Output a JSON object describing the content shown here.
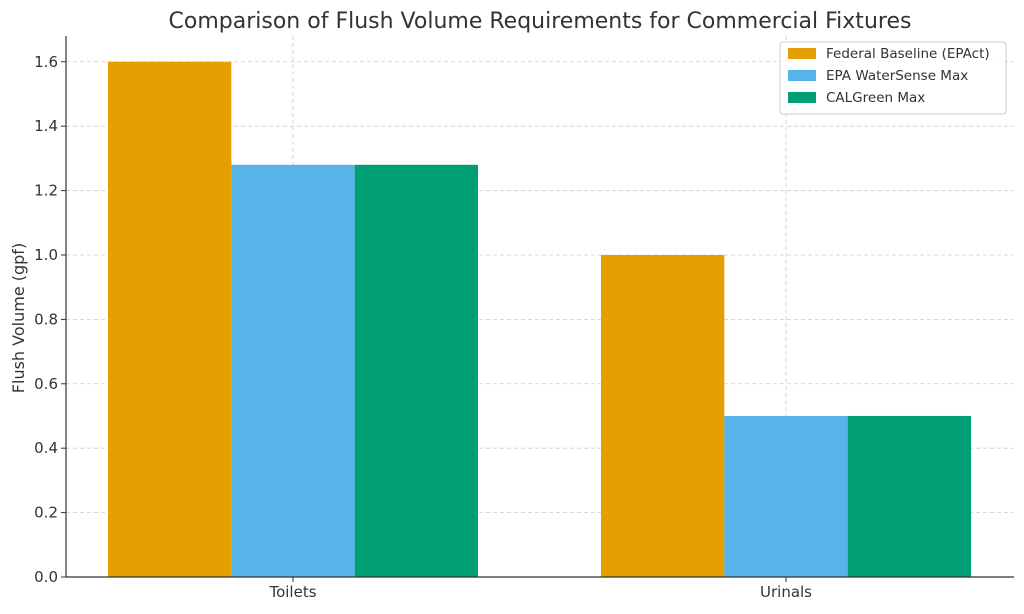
{
  "chart_data": {
    "type": "bar",
    "title": "Comparison of Flush Volume Requirements for Commercial Fixtures",
    "xlabel": "",
    "ylabel": "Flush Volume (gpf)",
    "categories": [
      "Toilets",
      "Urinals"
    ],
    "series": [
      {
        "name": "Federal Baseline (EPAct)",
        "values": [
          1.6,
          1.0
        ],
        "color": "#E69F00"
      },
      {
        "name": "EPA WaterSense Max",
        "values": [
          1.28,
          0.5
        ],
        "color": "#56B4E9"
      },
      {
        "name": "CALGreen Max",
        "values": [
          1.28,
          0.5
        ],
        "color": "#009E73"
      }
    ],
    "ylim": [
      0,
      1.68
    ],
    "yticks": [
      "0.0",
      "0.2",
      "0.4",
      "0.6",
      "0.8",
      "1.0",
      "1.2",
      "1.4",
      "1.6"
    ],
    "grid": true,
    "legend_position": "top-right"
  }
}
